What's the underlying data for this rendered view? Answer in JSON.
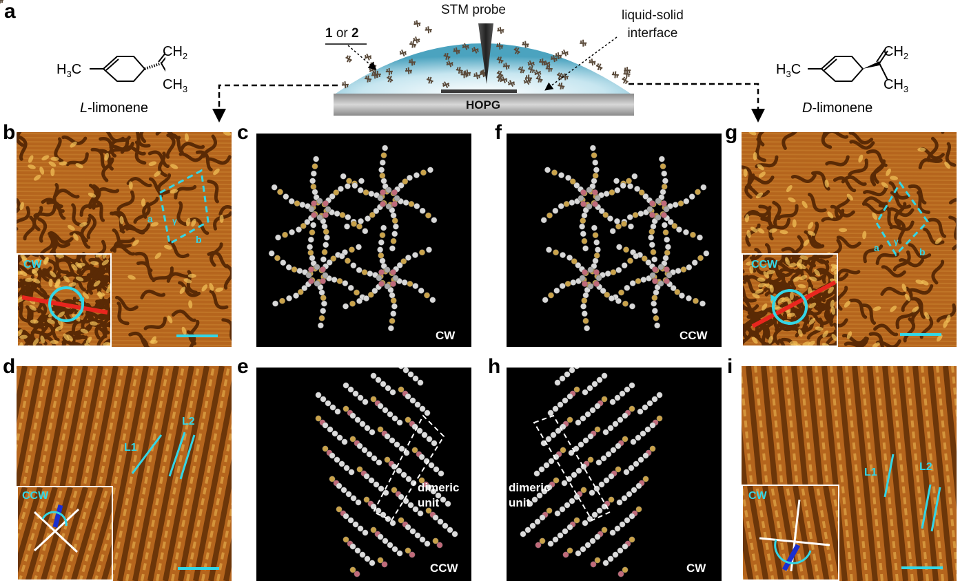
{
  "panel_labels": {
    "a": "a",
    "b": "b",
    "c": "c",
    "d": "d",
    "e": "e",
    "f": "f",
    "g": "g",
    "h": "h",
    "i": "i"
  },
  "schematic": {
    "probe_label": "STM probe",
    "molecule_label_1": "1",
    "molecule_label_or": "or",
    "molecule_label_2": "2",
    "interface_label_line1": "liquid-solid",
    "interface_label_line2": "interface",
    "substrate_label": "HOPG"
  },
  "left_molecule": {
    "h3c": "H",
    "h3c_sub": "3",
    "h3c_c": "C",
    "ch2": "CH",
    "ch2_sub": "2",
    "ch3": "CH",
    "ch3_sub": "3",
    "name_prefix": "L",
    "name_rest": "-limonene"
  },
  "right_molecule": {
    "h3c": "H",
    "h3c_sub": "3",
    "h3c_c": "C",
    "ch2": "CH",
    "ch2_sub": "2",
    "ch3": "CH",
    "ch3_sub": "3",
    "name_prefix": "D",
    "name_rest": "-limonene"
  },
  "panel_b": {
    "inset_label": "CW",
    "vec_a": "a",
    "vec_b": "b",
    "angle": "γ"
  },
  "panel_c": {
    "caption": "CW"
  },
  "panel_d": {
    "inset_label": "CCW",
    "l1": "L1",
    "l2": "L2"
  },
  "panel_e": {
    "caption": "CCW",
    "dimer_line1": "dimeric",
    "dimer_line2": "unit"
  },
  "panel_f": {
    "caption": "CCW"
  },
  "panel_g": {
    "inset_label": "CCW",
    "vec_a": "a",
    "vec_b": "b",
    "angle": "γ"
  },
  "panel_h": {
    "caption": "CW",
    "dimer_line1": "dimeric",
    "dimer_line2": "unit"
  },
  "panel_i": {
    "inset_label": "CW",
    "l1": "L1",
    "l2": "L2"
  },
  "colors": {
    "stm_dark": "#5a2a05",
    "stm_mid": "#b5651d",
    "stm_bright": "#f4c35a",
    "cyan": "#33d6e6",
    "red": "#e8261e",
    "blue": "#1a2fd0"
  }
}
